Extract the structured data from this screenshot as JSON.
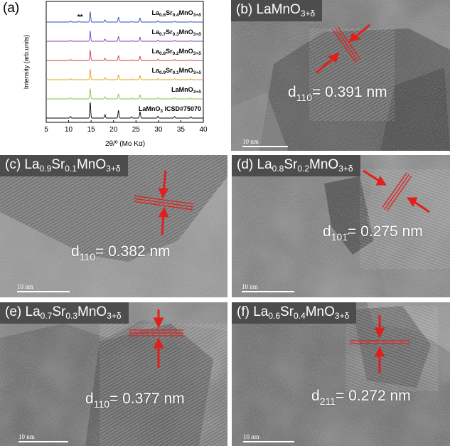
{
  "panel_a": {
    "label": "(a)",
    "chart_data": {
      "type": "line",
      "xlabel": "2θ/º (Mo Kα)",
      "ylabel": "Intensity (arb.units)",
      "xlim": [
        5,
        40
      ],
      "xticks": [
        5,
        10,
        15,
        20,
        25,
        30,
        35,
        40
      ],
      "annotation": "**",
      "peaks": [
        {
          "x": 10.4,
          "h": 0.1
        },
        {
          "x": 14.8,
          "h": 1.0
        },
        {
          "x": 18.1,
          "h": 0.22
        },
        {
          "x": 21.1,
          "h": 0.48
        },
        {
          "x": 24.0,
          "h": 0.08
        },
        {
          "x": 25.9,
          "h": 0.4
        },
        {
          "x": 29.9,
          "h": 0.12
        },
        {
          "x": 33.6,
          "h": 0.1
        },
        {
          "x": 37.2,
          "h": 0.08
        }
      ],
      "series": [
        {
          "label_parts": [
            "La",
            "0.6",
            "Sr",
            "0.4",
            "MnO",
            "3+δ"
          ],
          "color": "#2b4fb5",
          "offset": 5,
          "extra_peak": 12.4
        },
        {
          "label_parts": [
            "La",
            "0.7",
            "Sr",
            "0.3",
            "MnO",
            "3+δ"
          ],
          "color": "#7b3fb8",
          "offset": 4,
          "extra_peak": null
        },
        {
          "label_parts": [
            "La",
            "0.8",
            "Sr",
            "0.2",
            "MnO",
            "3+δ"
          ],
          "color": "#d63a3a",
          "offset": 3,
          "extra_peak": null
        },
        {
          "label_parts": [
            "La",
            "0.9",
            "Sr",
            "0.1",
            "MnO",
            "3+δ"
          ],
          "color": "#e6a117",
          "offset": 2,
          "extra_peak": null
        },
        {
          "label_parts": [
            "LaMnO",
            "3+δ"
          ],
          "color": "#8fbf4a",
          "offset": 1,
          "extra_peak": null
        },
        {
          "label_parts": [
            "LaMnO",
            "3",
            " ICSD#75070"
          ],
          "color": "#000000",
          "offset": 0,
          "extra_peak": null,
          "stick": true
        }
      ]
    }
  },
  "panel_b": {
    "label_pre": "(b) LaMnO",
    "label_sub": "3+δ",
    "d_pre": "d",
    "d_sub": "110",
    "d_val": "= 0.391 nm",
    "scale": "10 nm"
  },
  "panel_c": {
    "label_pre": "(c) La",
    "s1": "0.9",
    "mid": "Sr",
    "s2": "0.1",
    "mid2": "MnO",
    "s3": "3+δ",
    "d_pre": "d",
    "d_sub": "110",
    "d_val": "= 0.382 nm",
    "scale": "10 nm"
  },
  "panel_d": {
    "label_pre": "(d) La",
    "s1": "0.8",
    "mid": "Sr",
    "s2": "0.2",
    "mid2": "MnO",
    "s3": "3+δ",
    "d_pre": "d",
    "d_sub": "101̄",
    "d_val": "= 0.275 nm",
    "scale": "10 nm"
  },
  "panel_e": {
    "label_pre": "(e) La",
    "s1": "0.7",
    "mid": "Sr",
    "s2": "0.3",
    "mid2": "MnO",
    "s3": "3+δ",
    "d_pre": "d",
    "d_sub": "110",
    "d_val": "= 0.377 nm",
    "scale": "10 nm"
  },
  "panel_f": {
    "label_pre": "(f) La",
    "s1": "0.6",
    "mid": "Sr",
    "s2": "0.4",
    "mid2": "MnO",
    "s3": "3+δ",
    "d_pre": "d",
    "d_sub": "211",
    "d_val": "= 0.272 nm",
    "scale": "10 nm"
  },
  "colors": {
    "arrow": "#e0201c",
    "fringe": "#c0392b"
  }
}
